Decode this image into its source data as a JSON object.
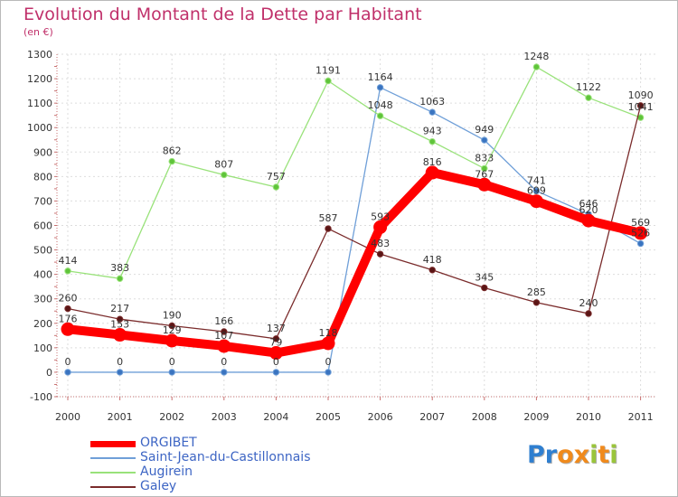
{
  "title": "Evolution du Montant de la Dette par Habitant",
  "subtitle": "(en €)",
  "brand": {
    "letters": [
      "P",
      "r",
      "o",
      "x",
      "i",
      "t",
      "i"
    ],
    "colors": [
      "#2f7fd0",
      "#2f7fd0",
      "#f08a1c",
      "#f08a1c",
      "#9ac53b",
      "#f08a1c",
      "#9ac53b"
    ]
  },
  "chart_data": {
    "type": "line",
    "title": "Evolution du Montant de la Dette par Habitant",
    "ylabel": "(en €)",
    "xlabel": "",
    "ylim": [
      -100,
      1300
    ],
    "yticks": [
      -100,
      0,
      100,
      200,
      300,
      400,
      500,
      600,
      700,
      800,
      900,
      1000,
      1100,
      1200,
      1300
    ],
    "categories": [
      "2000",
      "2001",
      "2002",
      "2003",
      "2004",
      "2005",
      "2006",
      "2007",
      "2008",
      "2009",
      "2010",
      "2011"
    ],
    "grid": true,
    "legend": "bottom-left",
    "series": [
      {
        "name": "ORGIBET",
        "color": "#ff0000",
        "values": [
          176,
          153,
          129,
          107,
          79,
          118,
          593,
          816,
          767,
          699,
          620,
          569
        ]
      },
      {
        "name": "Saint-Jean-du-Castillonnais",
        "color": "#6f9fd8",
        "values": [
          0,
          0,
          0,
          0,
          0,
          0,
          1164,
          1063,
          949,
          741,
          646,
          526
        ]
      },
      {
        "name": "Augirein",
        "color": "#99e27a",
        "values": [
          414,
          383,
          862,
          807,
          757,
          1191,
          1048,
          943,
          833,
          1248,
          1122,
          1041
        ]
      },
      {
        "name": "Galey",
        "color": "#7a2b2b",
        "values": [
          260,
          217,
          190,
          166,
          137,
          587,
          483,
          418,
          345,
          285,
          240,
          1090
        ]
      }
    ]
  }
}
